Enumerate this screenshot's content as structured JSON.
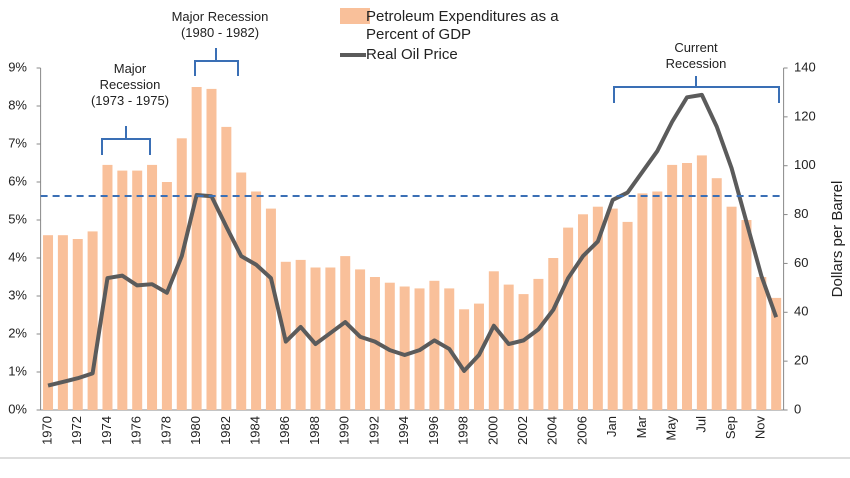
{
  "chart_data": {
    "type": "bar_line",
    "categories": [
      "1970",
      null,
      "1972",
      null,
      "1974",
      null,
      "1976",
      null,
      "1978",
      null,
      "1980",
      null,
      "1982",
      null,
      "1984",
      null,
      "1986",
      null,
      "1988",
      null,
      "1990",
      null,
      "1992",
      null,
      "1994",
      null,
      "1996",
      null,
      "1998",
      null,
      "2000",
      null,
      "2002",
      null,
      "2004",
      null,
      "2006",
      null,
      "Jan",
      null,
      "Mar",
      null,
      "May",
      null,
      "Jul",
      null,
      "Sep",
      null,
      "Nov",
      null
    ],
    "series": [
      {
        "name": "Petroleum Expenditures as a Percent of GDP",
        "type": "bar",
        "color": "#f9c09a",
        "values": [
          4.6,
          4.6,
          4.5,
          4.7,
          6.45,
          6.3,
          6.3,
          6.45,
          6.0,
          7.15,
          8.5,
          8.45,
          7.45,
          6.25,
          5.75,
          5.3,
          3.9,
          3.95,
          3.75,
          3.75,
          4.05,
          3.7,
          3.5,
          3.35,
          3.25,
          3.2,
          3.4,
          3.2,
          2.65,
          2.8,
          3.65,
          3.3,
          3.05,
          3.45,
          4.0,
          4.8,
          5.15,
          5.35,
          5.3,
          4.95,
          5.7,
          5.75,
          6.45,
          6.5,
          6.7,
          6.1,
          5.35,
          5.0,
          3.5,
          2.95
        ]
      },
      {
        "name": "Real Oil Price",
        "type": "line",
        "axis": "y2",
        "color": "#5b5b5b",
        "values": [
          10,
          11.5,
          13,
          15,
          54,
          55,
          51,
          51.5,
          48,
          63,
          88,
          87.5,
          75,
          63,
          59.5,
          54,
          28,
          34,
          27,
          31.5,
          36,
          30,
          28,
          24.5,
          22.5,
          24.5,
          28.5,
          25,
          16,
          22.5,
          34.5,
          27,
          28.5,
          33,
          41,
          54,
          63,
          69,
          86,
          89,
          97.5,
          106,
          118,
          128,
          129,
          116,
          99,
          77,
          55,
          38
        ]
      }
    ],
    "ylim": [
      0,
      9
    ],
    "yticks": [
      {
        "value": 0,
        "label": "0%"
      },
      {
        "value": 1,
        "label": "1%"
      },
      {
        "value": 2,
        "label": "2%"
      },
      {
        "value": 3,
        "label": "3%"
      },
      {
        "value": 4,
        "label": "4%"
      },
      {
        "value": 5,
        "label": "5%"
      },
      {
        "value": 6,
        "label": "6%"
      },
      {
        "value": 7,
        "label": "7%"
      },
      {
        "value": 8,
        "label": "8%"
      },
      {
        "value": 9,
        "label": "9%"
      }
    ],
    "y2lim": [
      0,
      140
    ],
    "y2ticks": [
      0,
      20,
      40,
      60,
      80,
      100,
      120,
      140
    ],
    "y2label": "Dollars per Barrel",
    "hline": 5.63,
    "hline_color": "#3a6fb5",
    "annotations": [
      "Major Recession (1980 - 1982)",
      "Major Recession (1973 - 1975)",
      "Current Recession"
    ]
  }
}
